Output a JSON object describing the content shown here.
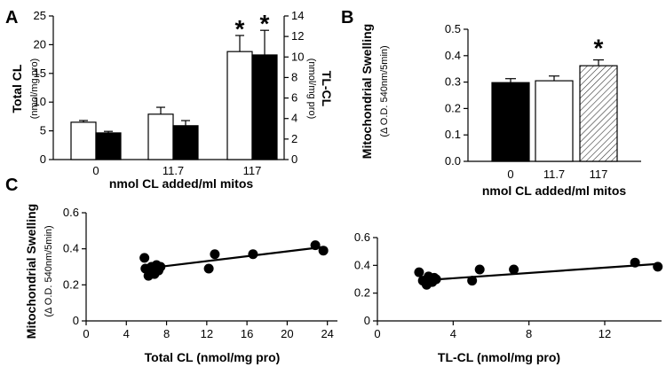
{
  "panels": {
    "a": "A",
    "b": "B",
    "c": "C"
  },
  "chart_data": [
    {
      "type": "bar",
      "panel": "A",
      "categories": [
        "0",
        "11.7",
        "117"
      ],
      "xlabel": "nmol CL added/ml mitos",
      "ylabel_left": "Total CL",
      "ylabel_left_units": "(nmol/mg pro)",
      "ylabel_right": "TL-CL",
      "ylabel_right_units": "(nmol/mg pro)",
      "ylim_left": [
        0,
        25
      ],
      "yticks_left": [
        "0",
        "5",
        "10",
        "15",
        "20",
        "25"
      ],
      "ylim_right": [
        0,
        14
      ],
      "yticks_right": [
        "0",
        "2",
        "4",
        "6",
        "8",
        "10",
        "12",
        "14"
      ],
      "series": [
        {
          "name": "Total CL",
          "axis": "left",
          "fill": "#ffffff",
          "values": [
            6.5,
            7.9,
            18.8
          ],
          "errors": [
            0.3,
            1.2,
            2.8
          ]
        },
        {
          "name": "TL-CL",
          "axis": "right",
          "fill": "#000000",
          "values": [
            2.6,
            3.3,
            10.2
          ],
          "errors": [
            0.15,
            0.5,
            2.4
          ]
        }
      ],
      "significance": [
        "",
        "",
        "*"
      ]
    },
    {
      "type": "bar",
      "panel": "B",
      "categories": [
        "0",
        "11.7",
        "117"
      ],
      "xlabel": "nmol CL added/ml mitos",
      "ylabel": "Mitochondrial Swelling",
      "ylabel_units": "(Δ O.D. 540nm/5min)",
      "ylim": [
        0,
        0.5
      ],
      "yticks": [
        "0.0",
        "0.1",
        "0.2",
        "0.3",
        "0.4",
        "0.5"
      ],
      "values": [
        0.298,
        0.305,
        0.362
      ],
      "errors": [
        0.015,
        0.018,
        0.022
      ],
      "fills": [
        "solid",
        "white",
        "hatched"
      ],
      "significance": [
        "",
        "",
        "*"
      ]
    },
    {
      "type": "scatter",
      "panel": "C-left",
      "xlabel": "Total CL (nmol/mg pro)",
      "ylabel": "Mitochondrial Swelling",
      "ylabel_units": "(Δ O.D. 540nm/5min)",
      "xlim": [
        0,
        25
      ],
      "xticks": [
        "0",
        "4",
        "8",
        "12",
        "16",
        "20",
        "24"
      ],
      "ylim": [
        0,
        0.6
      ],
      "yticks": [
        "0",
        "0.2",
        "0.4",
        "0.6"
      ],
      "x": [
        5.8,
        5.9,
        6.2,
        6.5,
        6.8,
        7.0,
        7.2,
        7.4,
        12.2,
        12.8,
        16.6,
        22.8,
        23.6
      ],
      "y": [
        0.35,
        0.29,
        0.25,
        0.3,
        0.26,
        0.31,
        0.28,
        0.3,
        0.29,
        0.37,
        0.37,
        0.42,
        0.39
      ],
      "fit_line": {
        "x": [
          5.8,
          23.6
        ],
        "y": [
          0.29,
          0.41
        ]
      }
    },
    {
      "type": "scatter",
      "panel": "C-right",
      "xlabel": "TL-CL (nmol/mg pro)",
      "ylim": [
        0,
        0.6
      ],
      "yticks": [
        "0",
        "0.2",
        "0.4",
        "0.6"
      ],
      "xlim": [
        0,
        15
      ],
      "xticks": [
        "0",
        "4",
        "8",
        "12"
      ],
      "x": [
        2.2,
        2.4,
        2.6,
        2.7,
        2.9,
        3.0,
        3.1,
        5.0,
        5.4,
        7.2,
        13.6,
        14.8
      ],
      "y": [
        0.35,
        0.29,
        0.26,
        0.32,
        0.28,
        0.31,
        0.3,
        0.29,
        0.37,
        0.37,
        0.42,
        0.39
      ],
      "fit_line": {
        "x": [
          2.2,
          14.8
        ],
        "y": [
          0.29,
          0.41
        ]
      }
    }
  ]
}
